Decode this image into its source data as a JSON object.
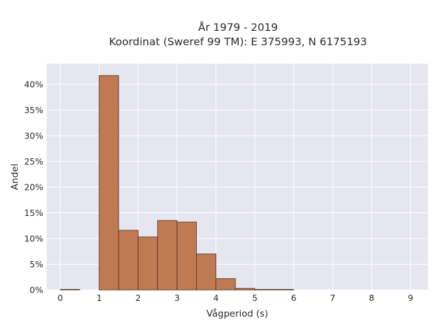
{
  "chart_data": {
    "type": "bar",
    "title": "År 1979 - 2019",
    "subtitle": "Koordinat (Sweref 99 TM): E 375993, N 6175193",
    "xlabel": "Vågperiod (s)",
    "ylabel": "Andel",
    "bin_width": 0.5,
    "bins": [
      {
        "x0": 0.0,
        "value": 0.1
      },
      {
        "x0": 0.5,
        "value": 0.0
      },
      {
        "x0": 1.0,
        "value": 41.7
      },
      {
        "x0": 1.5,
        "value": 11.6
      },
      {
        "x0": 2.0,
        "value": 10.3
      },
      {
        "x0": 2.5,
        "value": 13.5
      },
      {
        "x0": 3.0,
        "value": 13.2
      },
      {
        "x0": 3.5,
        "value": 7.0
      },
      {
        "x0": 4.0,
        "value": 2.2
      },
      {
        "x0": 4.5,
        "value": 0.3
      },
      {
        "x0": 5.0,
        "value": 0.1
      },
      {
        "x0": 5.5,
        "value": 0.1
      }
    ],
    "xlim": [
      -0.35,
      9.45
    ],
    "ylim": [
      0,
      44
    ],
    "x_ticks": [
      "0",
      "1",
      "2",
      "3",
      "4",
      "5",
      "6",
      "7",
      "8",
      "9"
    ],
    "y_ticks": [
      "0%",
      "5%",
      "10%",
      "15%",
      "20%",
      "25%",
      "30%",
      "35%",
      "40%"
    ],
    "bar_color": "#c07a52",
    "bar_edge": "#4a2a1a",
    "plot_bg": "#e6e6f0",
    "grid": true
  }
}
